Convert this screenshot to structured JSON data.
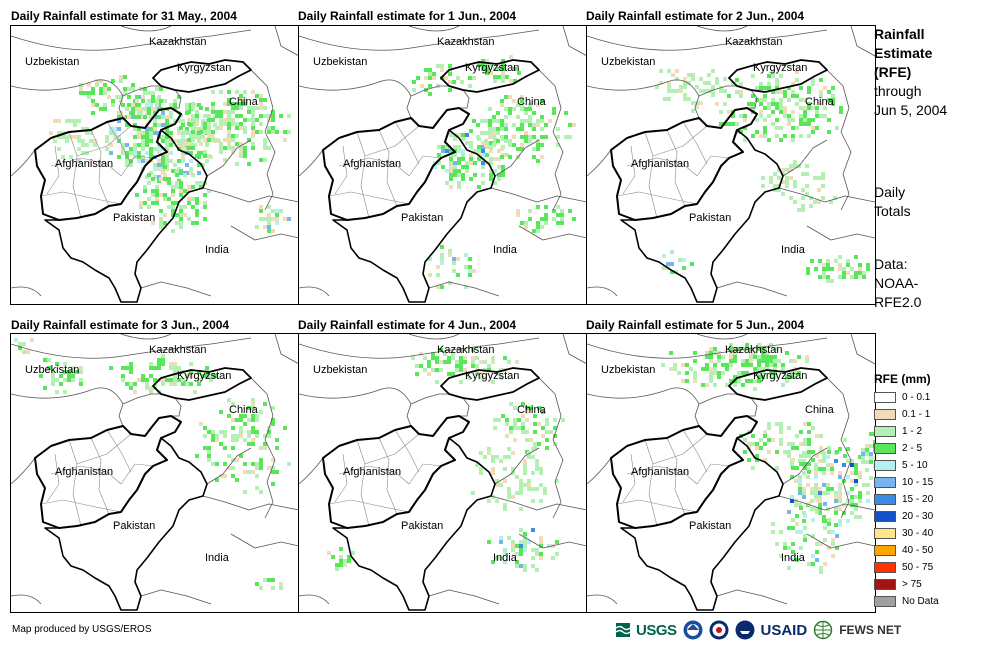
{
  "panels": [
    {
      "title": "Daily Rainfall estimate for 31 May., 2004"
    },
    {
      "title": "Daily Rainfall estimate for 1 Jun., 2004"
    },
    {
      "title": "Daily Rainfall estimate for 2 Jun., 2004"
    },
    {
      "title": "Daily Rainfall estimate for 3 Jun., 2004"
    },
    {
      "title": "Daily Rainfall estimate for 4 Jun., 2004"
    },
    {
      "title": "Daily Rainfall estimate for 5 Jun., 2004"
    }
  ],
  "country_labels": {
    "kazakhstan": "Kazakhstan",
    "uzbekistan": "Uzbekistan",
    "kyrgyzstan": "Kyrgyzstan",
    "china": "China",
    "afghanistan": "Afghanistan",
    "pakistan": "Pakistan",
    "india": "India"
  },
  "side": {
    "title_lines": [
      "Rainfall",
      "Estimate",
      "(RFE)"
    ],
    "through": "through",
    "date": "Jun 5, 2004",
    "daily": "Daily",
    "totals": "Totals",
    "data_label": "Data:",
    "data_source_1": "NOAA-",
    "data_source_2": "RFE2.0"
  },
  "legend": {
    "title": "RFE (mm)",
    "items": [
      {
        "label": "0 - 0.1",
        "color": "#ffffff"
      },
      {
        "label": "0.1 - 1",
        "color": "#f0dcb8"
      },
      {
        "label": "1 - 2",
        "color": "#b4f0b4"
      },
      {
        "label": "2 - 5",
        "color": "#5ae65a"
      },
      {
        "label": "5 - 10",
        "color": "#b4f0f0"
      },
      {
        "label": "10 - 15",
        "color": "#78b4f0"
      },
      {
        "label": "15 - 20",
        "color": "#3c8ce6"
      },
      {
        "label": "20 - 30",
        "color": "#1450c8"
      },
      {
        "label": "30 - 40",
        "color": "#ffe68c"
      },
      {
        "label": "40 - 50",
        "color": "#ffa500"
      },
      {
        "label": "50 - 75",
        "color": "#ff3200"
      },
      {
        "label": "> 75",
        "color": "#a01414"
      },
      {
        "label": "No Data",
        "color": "#a0a0a0"
      }
    ]
  },
  "credit": "Map produced by USGS/EROS",
  "logos": {
    "usgs": "USGS",
    "usaid": "USAID",
    "fewsnet": "FEWS NET"
  }
}
